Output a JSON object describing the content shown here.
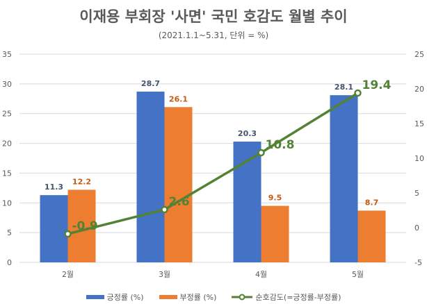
{
  "chart_data": {
    "type": "bar+line",
    "title": "이재용 부회장 '사면' 국민 호감도 월별 추이",
    "subtitle": "(2021.1.1~5.31, 단위 = %)",
    "categories": [
      "2월",
      "3월",
      "4월",
      "5월"
    ],
    "series": [
      {
        "name": "긍정률 (%)",
        "type": "bar",
        "axis": "left",
        "color": "#4472C4",
        "values": [
          11.3,
          28.7,
          20.3,
          28.1
        ]
      },
      {
        "name": "부정률 (%)",
        "type": "bar",
        "axis": "left",
        "color": "#ED7D31",
        "values": [
          12.2,
          26.1,
          9.5,
          8.7
        ]
      },
      {
        "name": "순호감도(=긍정률-부정률)",
        "type": "line",
        "axis": "right",
        "color": "#548235",
        "values": [
          -0.9,
          2.6,
          10.8,
          19.4
        ]
      }
    ],
    "left_axis": {
      "ylim": [
        0,
        35
      ],
      "ticks": [
        "0",
        "5",
        "10",
        "15",
        "20",
        "25",
        "30",
        "35"
      ]
    },
    "right_axis": {
      "ylim": [
        -5,
        25
      ],
      "ticks": [
        "-5",
        "0",
        "5",
        "10",
        "15",
        "20",
        "25"
      ]
    },
    "grid": true,
    "legend": "bottom"
  }
}
